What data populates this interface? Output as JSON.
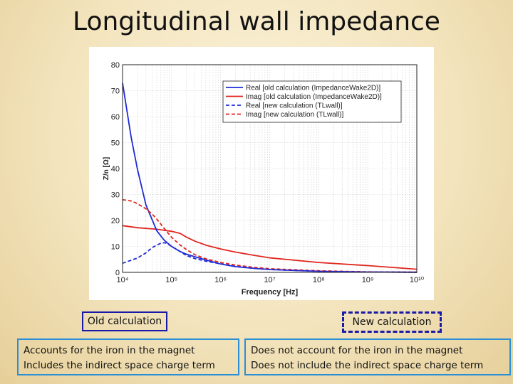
{
  "slide_title": "Longitudinal wall impedance",
  "labels": {
    "old": "Old calculation",
    "new": "New calculation"
  },
  "descriptions": {
    "old": [
      "Accounts for the iron in the magnet",
      "Includes the indirect space charge term"
    ],
    "new": [
      "Does not account for the iron in the magnet",
      "Does not include the indirect space charge term"
    ]
  },
  "chart_data": {
    "type": "line",
    "xlabel": "Frequency [Hz]",
    "ylabel": "Z/n [Ω]",
    "xscale": "log",
    "xlim": [
      10000,
      10000000000
    ],
    "ylim": [
      0,
      80
    ],
    "xtick_labels": [
      "10⁴",
      "10⁵",
      "10⁶",
      "10⁷",
      "10⁸",
      "10⁹",
      "10¹⁰"
    ],
    "xtick_values": [
      10000,
      100000,
      1000000,
      10000000,
      100000000,
      1000000000,
      10000000000
    ],
    "ytick_values": [
      0,
      10,
      20,
      30,
      40,
      50,
      60,
      70,
      80
    ],
    "grid": true,
    "legend_position": "top-right",
    "series": [
      {
        "name": "Real [old calculation (ImpedanceWake2D)]",
        "color": "#1f2bd6",
        "dash": "solid",
        "x": [
          10000,
          15000,
          20000,
          30000,
          50000,
          70000,
          100000,
          150000,
          200000,
          300000,
          500000,
          700000,
          1000000,
          2000000,
          5000000,
          10000000,
          100000000,
          1000000000,
          10000000000
        ],
        "y": [
          73,
          52,
          40,
          26,
          16,
          12.5,
          10,
          8,
          7,
          6,
          4.8,
          4,
          3.2,
          2.2,
          1.5,
          1.1,
          0.4,
          0.15,
          0.05
        ]
      },
      {
        "name": "Imag [old calculation (ImpedanceWake2D)]",
        "color": "#e0261e",
        "dash": "solid",
        "x": [
          10000,
          20000,
          50000,
          100000,
          150000,
          200000,
          300000,
          500000,
          1000000,
          2000000,
          5000000,
          10000000,
          100000000,
          1000000000,
          10000000000
        ],
        "y": [
          18,
          17.2,
          16.6,
          15.8,
          15,
          13.6,
          12,
          10.5,
          9,
          7.8,
          6.5,
          5.6,
          3.8,
          2.6,
          1.2
        ]
      },
      {
        "name": "Real [new calculation (TLwall)]",
        "color": "#1f2bd6",
        "dash": "dashed",
        "x": [
          10000,
          20000,
          30000,
          40000,
          50000,
          60000,
          70000,
          80000,
          100000,
          150000,
          200000,
          300000,
          500000,
          1000000,
          2000000,
          5000000,
          10000000,
          100000000,
          1000000000,
          10000000000
        ],
        "y": [
          3.5,
          5.5,
          7.5,
          9.5,
          10.5,
          11.2,
          11.4,
          11.2,
          10,
          8,
          6.5,
          5.3,
          4.3,
          3.3,
          2.3,
          1.5,
          1.1,
          0.4,
          0.15,
          0.05
        ]
      },
      {
        "name": "Imag [new calculation (TLwall)]",
        "color": "#e0261e",
        "dash": "dashed",
        "x": [
          10000,
          15000,
          20000,
          30000,
          40000,
          50000,
          70000,
          100000,
          150000,
          200000,
          300000,
          500000,
          1000000,
          2000000,
          5000000,
          10000000,
          100000000,
          1000000000,
          10000000000
        ],
        "y": [
          28,
          27.5,
          26.5,
          24.5,
          22.5,
          20.5,
          17,
          13.5,
          10.5,
          8.8,
          6.8,
          5.2,
          3.8,
          2.8,
          1.9,
          1.4,
          0.6,
          0.2,
          0.05
        ]
      }
    ]
  }
}
